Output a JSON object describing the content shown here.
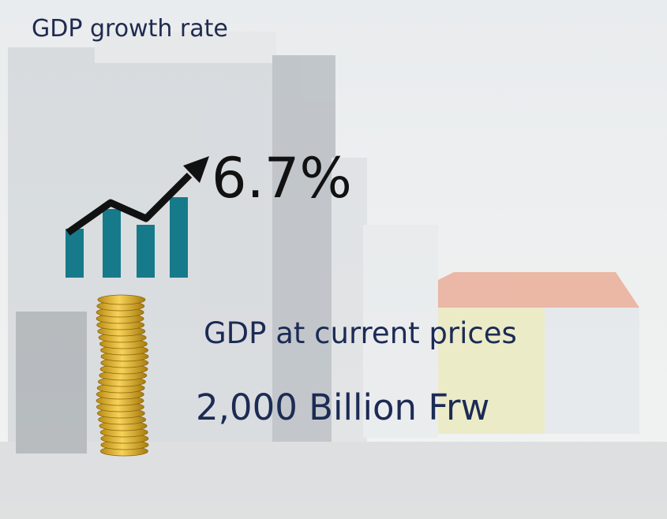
{
  "growth": {
    "label": "GDP growth rate",
    "value": "6.7%"
  },
  "gdp": {
    "label": "GDP at current prices",
    "value": "2,000 Billion Frw"
  }
}
